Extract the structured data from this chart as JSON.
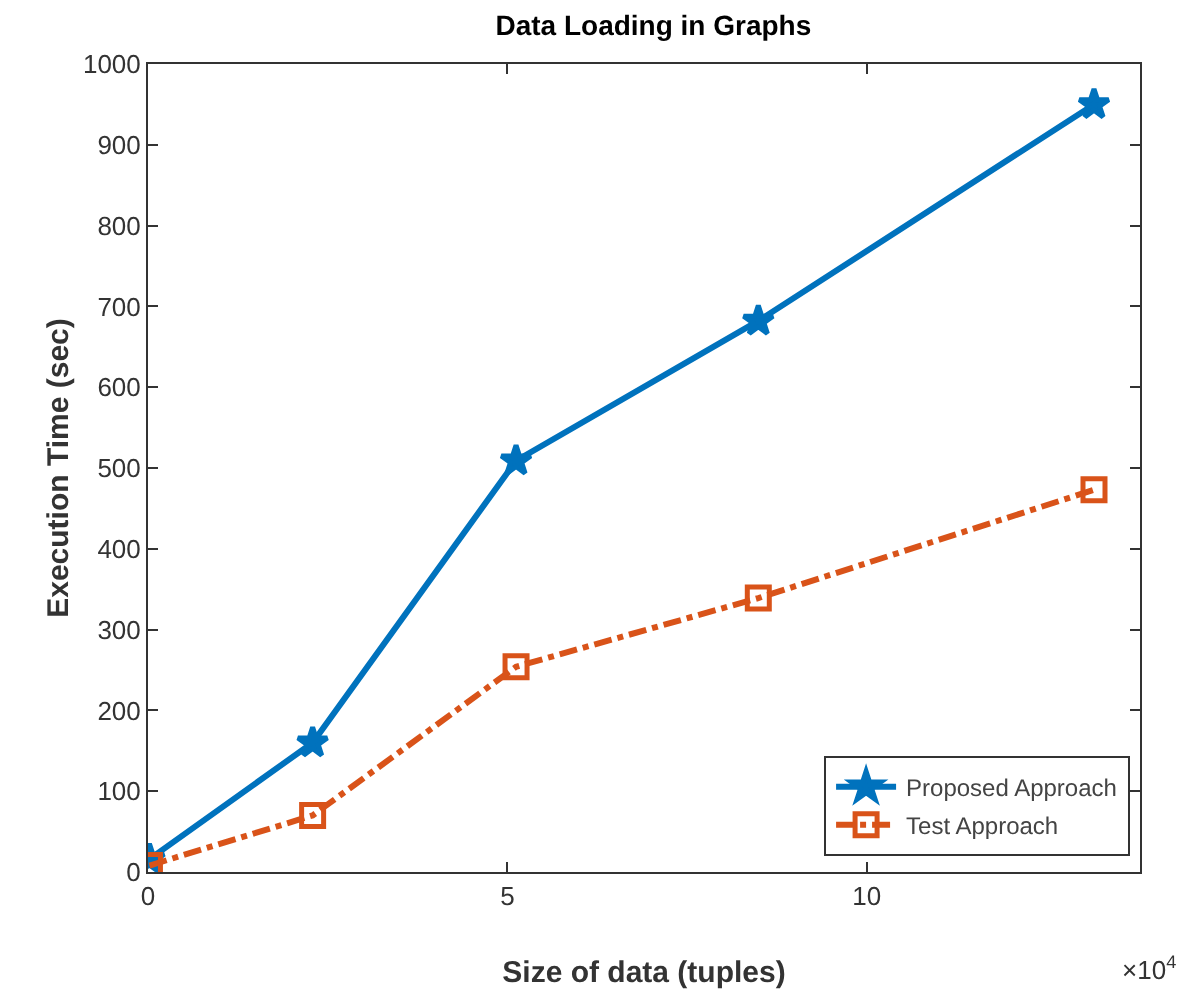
{
  "chart_data": {
    "type": "line",
    "title": "Data Loading in Graphs",
    "xlabel": "Size of data (tuples)",
    "ylabel": "Execution Time (sec)",
    "x": [
      0.02,
      2.29,
      5.12,
      8.49,
      13.16
    ],
    "series": [
      {
        "name": "Proposed Approach",
        "color": "#0072bd",
        "values": [
          16,
          160,
          509,
          682,
          950
        ],
        "marker": "star",
        "line_style": "solid"
      },
      {
        "name": "Test Approach",
        "color": "#d95319",
        "values": [
          8,
          70,
          254,
          339,
          473
        ],
        "marker": "square",
        "line_style": "dashdot"
      }
    ],
    "xlim": [
      0,
      13.8
    ],
    "xticks": [
      0,
      5,
      10
    ],
    "ylim": [
      0,
      1000
    ],
    "yticks": [
      0,
      100,
      200,
      300,
      400,
      500,
      600,
      700,
      800,
      900,
      1000
    ],
    "annotations": [
      "×10$^{4}$"
    ],
    "grid": false,
    "legend": "bottom right"
  }
}
